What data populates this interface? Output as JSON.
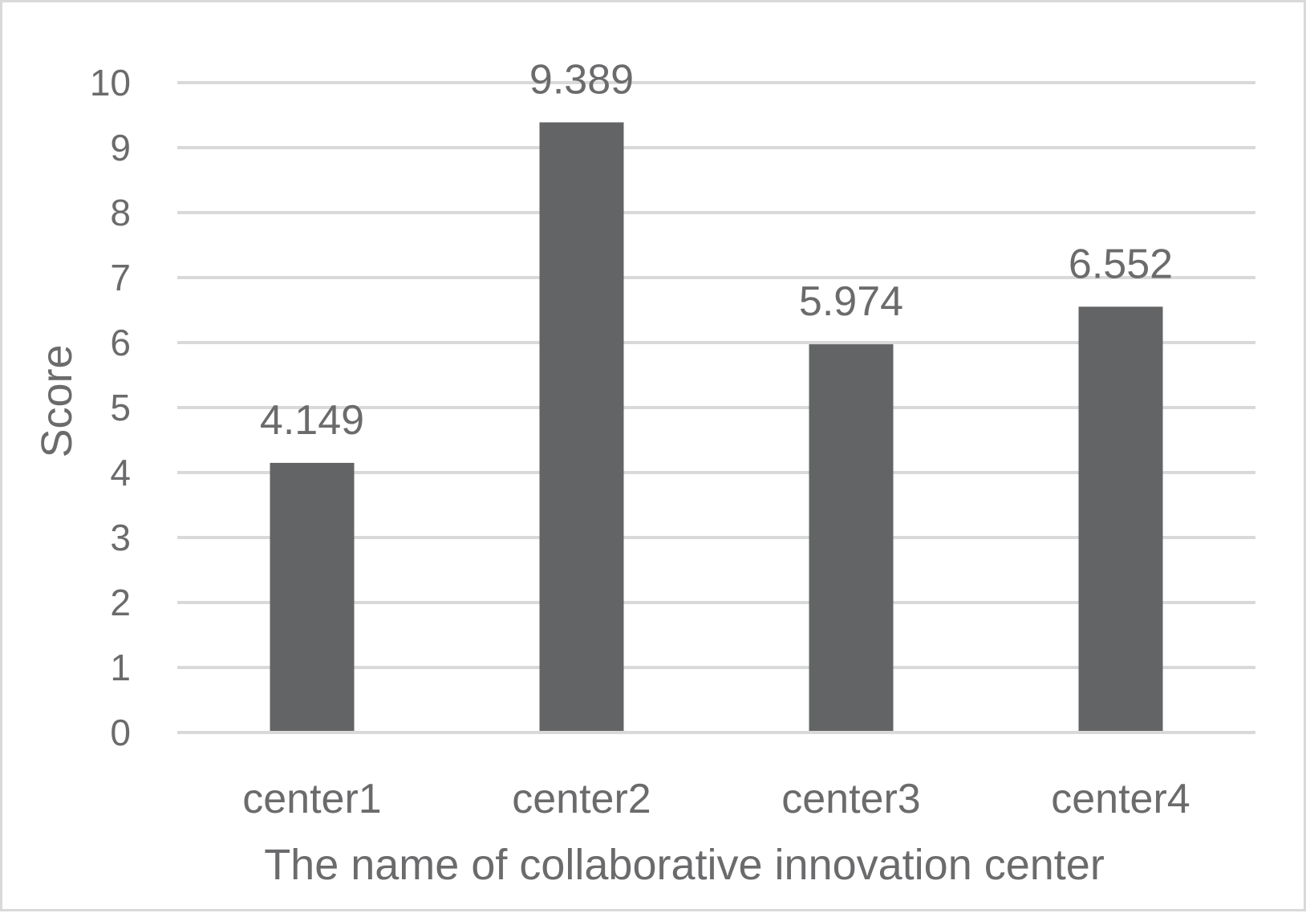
{
  "colors": {
    "bar": "#636466",
    "grid": "#d9d9d9",
    "text": "#6b6b6d",
    "frame": "#d9d9d9",
    "background": "#ffffff"
  },
  "chart_data": {
    "type": "bar",
    "title": "",
    "xlabel": "The name of collaborative innovation center",
    "ylabel": "Score",
    "categories": [
      "center1",
      "center2",
      "center3",
      "center4"
    ],
    "values": [
      4.149,
      9.389,
      5.974,
      6.552
    ],
    "data_labels": [
      "4.149",
      "9.389",
      "5.974",
      "6.552"
    ],
    "ylim": [
      0,
      10
    ],
    "yticks": [
      0,
      1,
      2,
      3,
      4,
      5,
      6,
      7,
      8,
      9,
      10
    ],
    "ytick_labels": [
      "0",
      "1",
      "2",
      "3",
      "4",
      "5",
      "6",
      "7",
      "8",
      "9",
      "10"
    ],
    "grid": true,
    "legend": "none"
  }
}
